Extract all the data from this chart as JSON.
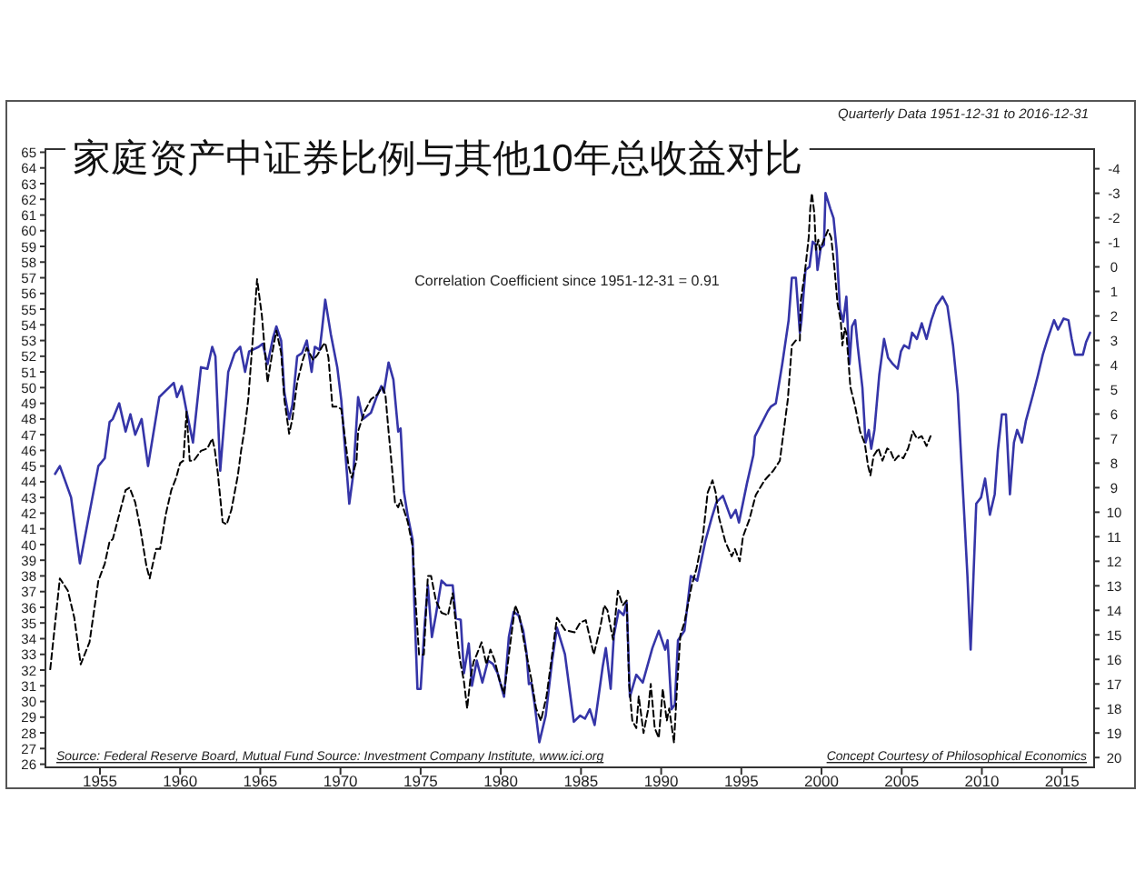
{
  "chart_data": {
    "type": "line",
    "title": "家庭资产中证券比例与其他10年总收益对比",
    "subtitle": "Quarterly Data 1951-12-31 to 2016-12-31",
    "annotations": [
      "Correlation Coefficient since 1951-12-31 = 0.91",
      "Source: Federal Reserve Board, Mutual Fund Source: Investment Company Institute, www.ici.org",
      "Concept Courtesy of Philosophical Economics"
    ],
    "xlim": [
      1951.6,
      2017.0
    ],
    "xticks": [
      1955,
      1960,
      1965,
      1970,
      1975,
      1980,
      1985,
      1990,
      1995,
      2000,
      2005,
      2010,
      2015
    ],
    "ylim": [
      25.8,
      65.2
    ],
    "yticks": [
      26,
      27,
      28,
      29,
      30,
      31,
      32,
      33,
      34,
      35,
      36,
      37,
      38,
      39,
      40,
      41,
      42,
      43,
      44,
      45,
      46,
      47,
      48,
      49,
      50,
      51,
      52,
      53,
      54,
      55,
      56,
      57,
      58,
      59,
      60,
      61,
      62,
      63,
      64,
      65
    ],
    "y2lim": [
      20.4,
      -4.8
    ],
    "y2ticks": [
      -4,
      -3,
      -2,
      -1,
      0,
      1,
      2,
      3,
      4,
      5,
      6,
      7,
      8,
      9,
      10,
      11,
      12,
      13,
      14,
      15,
      16,
      17,
      18,
      19,
      20
    ],
    "series": [
      {
        "color": "#3535a8",
        "line_style": "solid",
        "x": [
          1952.2,
          1952.5,
          1953.2,
          1953.75,
          1954.9,
          1955.3,
          1955.6,
          1955.8,
          1956.2,
          1956.6,
          1956.9,
          1957.2,
          1957.6,
          1958.0,
          1958.7,
          1959.6,
          1959.8,
          1960.1,
          1960.4,
          1960.8,
          1961.3,
          1961.7,
          1962.0,
          1962.2,
          1962.5,
          1963.0,
          1963.4,
          1963.75,
          1964.05,
          1964.3,
          1964.9,
          1965.15,
          1965.45,
          1965.8,
          1966.0,
          1966.3,
          1966.5,
          1966.8,
          1967.0,
          1967.3,
          1967.6,
          1967.9,
          1968.2,
          1968.4,
          1968.7,
          1968.85,
          1969.05,
          1969.4,
          1969.8,
          1970.05,
          1970.55,
          1970.8,
          1971.1,
          1971.4,
          1971.9,
          1972.25,
          1972.55,
          1972.7,
          1973.0,
          1973.3,
          1973.6,
          1973.75,
          1973.95,
          1974.2,
          1974.5,
          1974.6,
          1974.8,
          1975.0,
          1975.25,
          1975.45,
          1975.7,
          1975.95,
          1976.3,
          1976.6,
          1977.0,
          1977.2,
          1977.5,
          1977.7,
          1978.0,
          1978.2,
          1978.5,
          1978.85,
          1979.2,
          1979.5,
          1979.8,
          1980.2,
          1980.5,
          1980.8,
          1981.1,
          1981.4,
          1981.6,
          1981.75,
          1981.9,
          1982.1,
          1982.4,
          1982.8,
          1983.2,
          1983.5,
          1984.0,
          1984.55,
          1984.95,
          1985.25,
          1985.55,
          1985.85,
          1986.35,
          1986.55,
          1986.85,
          1987.05,
          1987.35,
          1987.65,
          1987.85,
          1988.05,
          1988.45,
          1988.85,
          1989.45,
          1989.85,
          1990.25,
          1990.4,
          1990.65,
          1990.85,
          1991.05,
          1991.45,
          1991.85,
          1992.25,
          1992.75,
          1993.15,
          1993.45,
          1993.85,
          1994.35,
          1994.65,
          1994.85,
          1995.35,
          1995.75,
          1995.85,
          1996.25,
          1996.65,
          1996.85,
          1997.15,
          1997.55,
          1997.95,
          1998.15,
          1998.4,
          1998.65,
          1998.75,
          1999.0,
          1999.25,
          1999.45,
          1999.65,
          1999.75,
          1999.95,
          2000.15,
          2000.25,
          2000.55,
          2000.75,
          2000.95,
          2001.15,
          2001.35,
          2001.55,
          2001.75,
          2001.9,
          2002.1,
          2002.25,
          2002.55,
          2002.75,
          2002.95,
          2003.1,
          2003.3,
          2003.6,
          2003.9,
          2004.15,
          2004.45,
          2004.75,
          2004.95,
          2005.15,
          2005.45,
          2005.65,
          2005.95,
          2006.25,
          2006.55,
          2006.85,
          2007.15,
          2007.55,
          2007.85,
          2008.2,
          2008.5,
          2008.7,
          2008.9,
          2009.1,
          2009.3,
          2009.65,
          2009.95,
          2010.2,
          2010.5,
          2010.8,
          2011.0,
          2011.25,
          2011.5,
          2011.75,
          2012.0,
          2012.2,
          2012.5,
          2012.75,
          2013.2,
          2013.5,
          2013.8,
          2014.1,
          2014.5,
          2014.75,
          2015.1,
          2015.4,
          2015.6,
          2015.8,
          2016.3,
          2016.5,
          2016.75
        ],
        "values": [
          44.5,
          45.0,
          43.0,
          38.8,
          45.0,
          45.5,
          47.8,
          48.0,
          49.0,
          47.2,
          48.3,
          47.0,
          48.0,
          45.0,
          49.4,
          50.3,
          49.4,
          50.1,
          48.5,
          46.5,
          51.3,
          51.2,
          52.6,
          52.0,
          44.7,
          51.0,
          52.2,
          52.6,
          51.0,
          52.3,
          52.6,
          52.8,
          51.5,
          53.2,
          53.9,
          53.0,
          49.7,
          48.0,
          48.9,
          52.0,
          52.2,
          53.0,
          51.0,
          52.6,
          52.4,
          53.7,
          55.6,
          53.4,
          51.3,
          49.2,
          42.6,
          44.5,
          49.4,
          48.0,
          48.4,
          49.4,
          50.1,
          49.7,
          51.6,
          50.5,
          47.2,
          47.4,
          43.4,
          41.8,
          40.3,
          36.4,
          30.8,
          30.8,
          34.9,
          37.4,
          34.1,
          35.5,
          37.7,
          37.4,
          37.4,
          35.3,
          35.2,
          31.8,
          33.7,
          31.0,
          32.6,
          31.2,
          32.6,
          32.4,
          31.8,
          30.3,
          34.1,
          35.7,
          35.5,
          34.5,
          33.1,
          31.1,
          31.2,
          29.9,
          27.4,
          29.1,
          32.6,
          34.7,
          33.0,
          28.7,
          29.1,
          28.9,
          29.5,
          28.5,
          32.2,
          33.4,
          30.8,
          34.2,
          35.8,
          35.5,
          36.3,
          30.3,
          31.7,
          31.2,
          33.4,
          34.5,
          33.3,
          33.9,
          29.5,
          29.8,
          33.9,
          34.5,
          38.0,
          37.7,
          40.2,
          41.7,
          42.7,
          43.1,
          41.7,
          42.2,
          41.4,
          43.9,
          45.7,
          46.9,
          47.7,
          48.5,
          48.8,
          49.0,
          51.5,
          54.3,
          57.0,
          57.0,
          53.5,
          54.3,
          57.5,
          57.7,
          59.3,
          59.1,
          57.5,
          58.9,
          59.1,
          62.4,
          61.4,
          60.8,
          58.7,
          55.0,
          54.2,
          55.8,
          51.5,
          53.9,
          54.3,
          52.7,
          50.0,
          46.5,
          47.3,
          46.1,
          47.3,
          50.8,
          53.1,
          51.9,
          51.5,
          51.2,
          52.3,
          52.7,
          52.5,
          53.5,
          53.1,
          54.1,
          53.1,
          54.3,
          55.2,
          55.8,
          55.2,
          52.7,
          49.6,
          45.7,
          41.9,
          38.0,
          33.3,
          42.6,
          43.0,
          44.2,
          41.9,
          43.2,
          46.0,
          48.3,
          48.3,
          43.2,
          46.5,
          47.3,
          46.5,
          47.9,
          49.6,
          50.8,
          52.1,
          53.1,
          54.3,
          53.7,
          54.4,
          54.3,
          53.1,
          52.1,
          52.1,
          52.9,
          53.5
        ]
      },
      {
        "color": "#000000",
        "axis": "y2",
        "line_style": "dashed",
        "x": [
          1951.9,
          1952.5,
          1953.0,
          1953.4,
          1953.8,
          1954.35,
          1954.9,
          1955.3,
          1955.6,
          1955.8,
          1956.2,
          1956.6,
          1956.85,
          1957.2,
          1957.5,
          1957.9,
          1958.1,
          1958.5,
          1958.75,
          1959.1,
          1959.45,
          1959.75,
          1960.0,
          1960.2,
          1960.4,
          1960.6,
          1960.85,
          1961.3,
          1961.7,
          1962.0,
          1962.15,
          1962.35,
          1962.65,
          1962.9,
          1963.2,
          1963.6,
          1963.8,
          1964.0,
          1964.25,
          1964.5,
          1964.8,
          1965.1,
          1965.45,
          1965.75,
          1966.0,
          1966.3,
          1966.5,
          1966.8,
          1967.0,
          1967.3,
          1967.65,
          1967.9,
          1968.3,
          1968.55,
          1968.9,
          1969.05,
          1969.25,
          1969.5,
          1969.8,
          1970.05,
          1970.5,
          1970.7,
          1971.0,
          1971.1,
          1971.5,
          1971.9,
          1972.3,
          1972.6,
          1972.8,
          1973.0,
          1973.2,
          1973.4,
          1973.6,
          1973.75,
          1973.95,
          1974.2,
          1974.5,
          1974.7,
          1974.9,
          1975.2,
          1975.45,
          1975.65,
          1975.95,
          1976.3,
          1976.7,
          1977.0,
          1977.2,
          1977.45,
          1977.7,
          1977.9,
          1978.1,
          1978.3,
          1978.5,
          1978.8,
          1979.1,
          1979.35,
          1979.6,
          1979.9,
          1980.2,
          1980.6,
          1980.9,
          1981.15,
          1981.4,
          1981.6,
          1981.9,
          1982.2,
          1982.5,
          1982.85,
          1983.2,
          1983.5,
          1984.0,
          1984.6,
          1984.95,
          1985.3,
          1985.8,
          1986.2,
          1986.45,
          1986.65,
          1987.0,
          1987.3,
          1987.6,
          1987.85,
          1988.0,
          1988.2,
          1988.45,
          1988.6,
          1988.9,
          1989.2,
          1989.35,
          1989.6,
          1989.85,
          1990.1,
          1990.35,
          1990.5,
          1990.8,
          1991.0,
          1991.2,
          1991.45,
          1991.9,
          1992.2,
          1992.6,
          1992.9,
          1993.2,
          1993.4,
          1993.6,
          1994.0,
          1994.4,
          1994.6,
          1994.9,
          1995.1,
          1995.5,
          1995.9,
          1996.45,
          1997.0,
          1997.4,
          1997.6,
          1997.9,
          1998.15,
          1998.4,
          1998.65,
          1998.7,
          1998.9,
          1999.0,
          1999.2,
          1999.3,
          1999.4,
          1999.55,
          1999.65,
          1999.8,
          1999.9,
          2000.4,
          2000.6,
          2000.8,
          2001.0,
          2001.2,
          2001.3,
          2001.45,
          2001.55,
          2001.8,
          2002.1,
          2002.4,
          2002.7,
          2002.9,
          2003.05,
          2003.25,
          2003.55,
          2003.8,
          2004.1,
          2004.3,
          2004.55,
          2004.8,
          2005.1,
          2005.4,
          2005.7,
          2005.95,
          2006.25,
          2006.55,
          2006.8
        ],
        "values": [
          16.4,
          12.7,
          13.2,
          14.3,
          16.2,
          15.3,
          12.8,
          12.1,
          11.2,
          11.1,
          10.1,
          9.1,
          9.0,
          9.6,
          10.6,
          12.2,
          12.7,
          11.5,
          11.5,
          10.1,
          9.1,
          8.6,
          8.0,
          7.9,
          5.9,
          7.9,
          7.9,
          7.5,
          7.4,
          7.0,
          7.4,
          8.4,
          10.4,
          10.5,
          9.9,
          8.5,
          7.5,
          6.7,
          5.4,
          3.2,
          0.5,
          2.0,
          4.7,
          3.5,
          2.6,
          3.5,
          5.4,
          6.8,
          6.2,
          4.7,
          3.8,
          3.3,
          3.8,
          3.6,
          3.2,
          3.1,
          3.7,
          5.7,
          5.7,
          5.8,
          8.1,
          8.6,
          7.9,
          6.7,
          5.9,
          5.4,
          5.2,
          4.9,
          5.2,
          6.7,
          8.1,
          9.6,
          9.8,
          9.5,
          9.9,
          10.4,
          11.4,
          13.8,
          15.8,
          15.8,
          12.6,
          12.6,
          13.6,
          14.1,
          14.2,
          13.3,
          14.6,
          16.0,
          16.9,
          18.0,
          16.8,
          16.1,
          15.8,
          15.3,
          16.2,
          15.6,
          16.0,
          16.8,
          17.4,
          15.3,
          13.8,
          14.2,
          15.1,
          15.8,
          16.8,
          18.0,
          18.5,
          17.5,
          15.8,
          14.3,
          14.8,
          14.9,
          14.5,
          14.4,
          15.8,
          14.7,
          13.8,
          14.0,
          15.2,
          13.2,
          13.8,
          13.6,
          17.0,
          18.5,
          18.8,
          17.5,
          19.0,
          18.0,
          17.0,
          18.8,
          19.2,
          17.2,
          18.5,
          18.0,
          19.4,
          17.0,
          15.0,
          14.5,
          13.0,
          12.3,
          11.0,
          9.2,
          8.7,
          9.2,
          10.2,
          11.2,
          11.8,
          11.5,
          12.0,
          11.0,
          10.3,
          9.3,
          8.7,
          8.3,
          7.9,
          6.9,
          5.4,
          3.2,
          3.0,
          3.0,
          1.4,
          0.5,
          0.0,
          -1.2,
          -2.4,
          -3.0,
          -2.2,
          -0.7,
          -1.1,
          -0.7,
          -1.5,
          -1.2,
          0.0,
          1.5,
          2.2,
          3.2,
          2.5,
          2.7,
          4.9,
          5.7,
          6.7,
          7.2,
          8.1,
          8.5,
          7.7,
          7.4,
          7.9,
          7.4,
          7.5,
          7.9,
          7.7,
          7.8,
          7.4,
          6.7,
          7.0,
          6.9,
          7.3,
          6.9
        ]
      }
    ]
  }
}
